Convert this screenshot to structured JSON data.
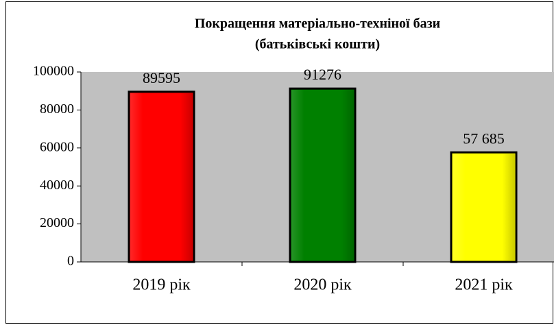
{
  "chart_data": {
    "type": "bar",
    "title": [
      "Покращення матеріально-технiної бази",
      "(батьківські кошти)"
    ],
    "categories": [
      "2019 рік",
      "2020 рік",
      "2021 рік"
    ],
    "values": [
      89595,
      91276,
      57685
    ],
    "value_labels": [
      "89595",
      "91276",
      "57 685"
    ],
    "colors": [
      "#ff0000",
      "#008000",
      "#ffff00"
    ],
    "ylim": [
      0,
      100000
    ],
    "yticks": [
      0,
      20000,
      40000,
      60000,
      80000,
      100000
    ],
    "grid": false
  }
}
